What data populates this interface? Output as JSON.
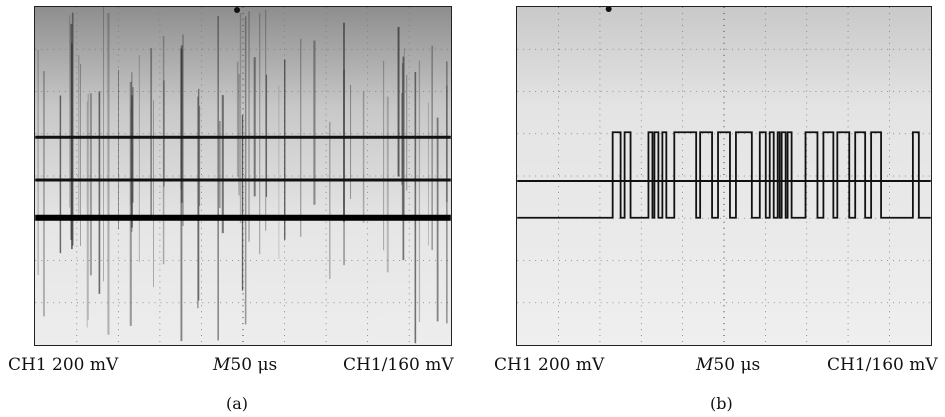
{
  "panels": [
    {
      "id": "a",
      "label": "(a)",
      "readout": {
        "left": "CH1  200 mV",
        "center_prefix": "M",
        "center": "50 μs",
        "right": "CH1/160 mV"
      }
    },
    {
      "id": "b",
      "label": "(b)",
      "readout": {
        "left": "CH1  200 mV",
        "center_prefix": "M",
        "center": "50 μs",
        "right": "CH1/160 mV"
      }
    }
  ]
}
